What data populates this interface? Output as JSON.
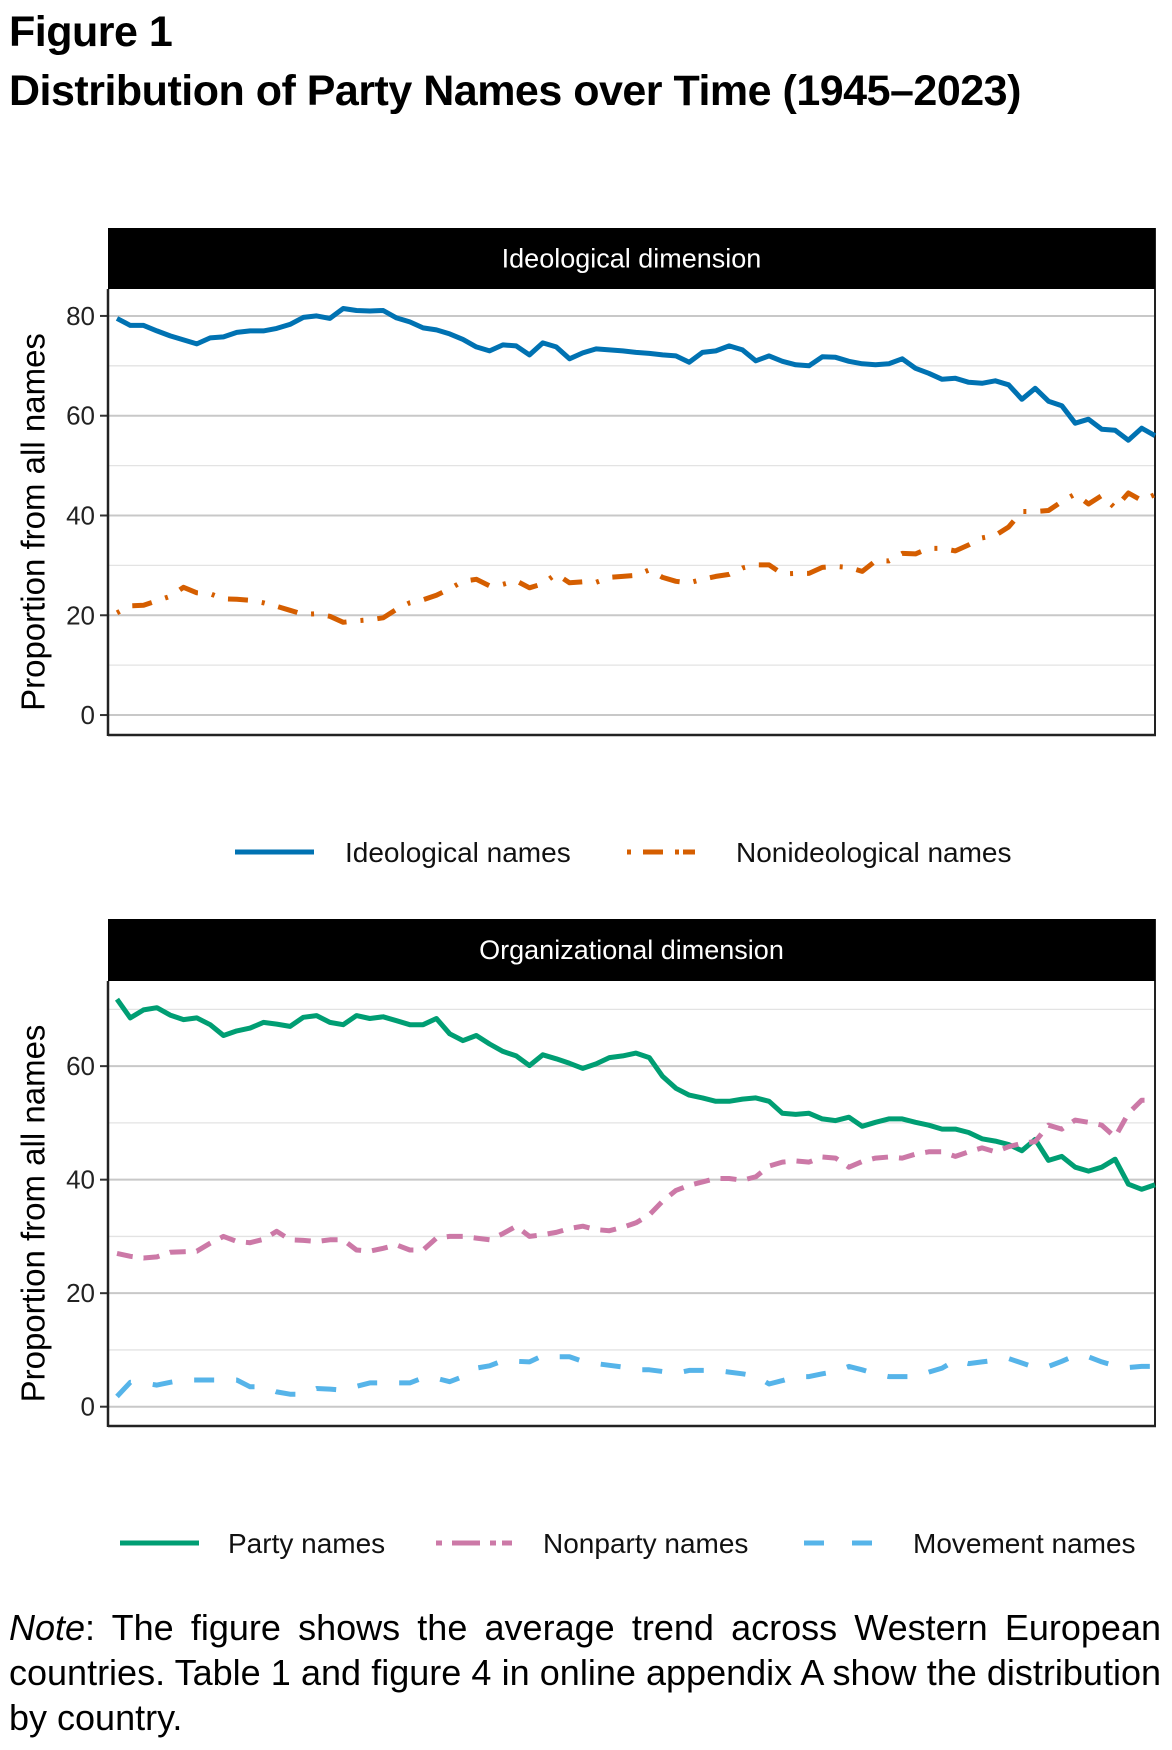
{
  "figure": {
    "label": "Figure 1",
    "title": "Distribution of Party Names over Time (1945–2023)",
    "note_label": "Note",
    "note_text": ": The figure shows the average trend across Western European countries. Table 1 and figure 4 in online appendix A show the distribution by country."
  },
  "chart_data": [
    {
      "type": "line",
      "title": "Ideological dimension",
      "xlabel": "",
      "ylabel": "Proportion from all names",
      "x_start": 1945,
      "x_end": 2023,
      "x_ticks_shown": false,
      "ylim": [
        -4,
        85.4
      ],
      "yticks": [
        0,
        20,
        40,
        60,
        80
      ],
      "minor_gridlines": [
        10,
        30,
        50,
        70
      ],
      "grid": true,
      "legend_position": "bottom",
      "series": [
        {
          "name": "Ideological names",
          "color": "#0072B2",
          "linetype": "solid",
          "values": [
            79.5,
            78.1,
            78.1,
            77,
            76,
            75.2,
            74.4,
            75.6,
            75.8,
            76.7,
            77,
            77,
            77.5,
            78.3,
            79.7,
            80,
            79.5,
            81.5,
            81.1,
            81,
            81.1,
            79.6,
            78.8,
            77.6,
            77.2,
            76.4,
            75.3,
            73.8,
            73,
            74.2,
            74,
            72.2,
            74.6,
            73.8,
            71.4,
            72.6,
            73.4,
            73.2,
            73,
            72.7,
            72.5,
            72.2,
            72,
            70.7,
            72.7,
            73,
            74,
            73.2,
            71,
            72,
            70.9,
            70.2,
            70,
            71.8,
            71.7,
            70.9,
            70.4,
            70.2,
            70.4,
            71.4,
            69.5,
            68.5,
            67.3,
            67.5,
            66.7,
            66.5,
            67,
            66.2,
            63.3,
            65.5,
            62.9,
            62,
            58.5,
            59.3,
            57.3,
            57.1,
            55.1,
            57.5,
            56
          ]
        },
        {
          "name": "Nonideological names",
          "color": "#D55E00",
          "linetype": "dotdash",
          "values": [
            20.5,
            21.9,
            22,
            22.9,
            23.8,
            25.6,
            24.5,
            24.3,
            23.3,
            23.2,
            23,
            22.5,
            21.8,
            21,
            20.2,
            20.3,
            19.8,
            18.6,
            18.9,
            19.1,
            19.5,
            21.2,
            22.5,
            23.1,
            24,
            25.3,
            26.8,
            27.2,
            25.9,
            26.2,
            26.9,
            25.5,
            26.3,
            28.3,
            26.5,
            26.7,
            26.6,
            27.6,
            27.8,
            28,
            29.1,
            27.6,
            26.8,
            26.5,
            27.2,
            27.8,
            28.2,
            29.5,
            30.1,
            30.1,
            28.3,
            28.4,
            28.4,
            29.6,
            29.8,
            29.6,
            28.8,
            30.9,
            30.9,
            32.4,
            32.3,
            33.4,
            33.4,
            32.9,
            34.1,
            35.5,
            36,
            37.7,
            40.8,
            40.8,
            41,
            42.8,
            44.3,
            42.3,
            44,
            41.5,
            44.5,
            43,
            44.2
          ]
        }
      ]
    },
    {
      "type": "line",
      "title": "Organizational dimension",
      "xlabel": "",
      "ylabel": "Proportion from all names",
      "x_start": 1945,
      "x_end": 2023,
      "x_ticks_shown": false,
      "ylim": [
        -3.4,
        75
      ],
      "yticks": [
        0,
        20,
        40,
        60
      ],
      "minor_gridlines": [
        10,
        30,
        50,
        70
      ],
      "grid": true,
      "legend_position": "bottom",
      "series": [
        {
          "name": "Party names",
          "color": "#009E73",
          "linetype": "solid",
          "values": [
            71.8,
            68.5,
            69.9,
            70.3,
            69,
            68.2,
            68.5,
            67.3,
            65.4,
            66.2,
            66.7,
            67.7,
            67.4,
            67,
            68.6,
            68.9,
            67.7,
            67.3,
            68.9,
            68.4,
            68.7,
            68,
            67.3,
            67.3,
            68.4,
            65.7,
            64.5,
            65.4,
            63.9,
            62.6,
            61.8,
            60.1,
            62,
            61.3,
            60.5,
            59.6,
            60.4,
            61.5,
            61.8,
            62.3,
            61.5,
            58.2,
            56.1,
            54.9,
            54.4,
            53.8,
            53.8,
            54.2,
            54.4,
            53.8,
            51.7,
            51.5,
            51.7,
            50.7,
            50.4,
            51,
            49.4,
            50.1,
            50.7,
            50.7,
            50.1,
            49.6,
            48.9,
            48.9,
            48.3,
            47.2,
            46.8,
            46.2,
            45.1,
            47.1,
            43.4,
            44.1,
            42.2,
            41.5,
            42.2,
            43.6,
            39.2,
            38.3,
            39.1
          ]
        },
        {
          "name": "Nonparty names",
          "color": "#CC79A7",
          "linetype": "dashed",
          "values": [
            27,
            26.5,
            26.2,
            26.4,
            27.2,
            27.3,
            27.4,
            28.8,
            30,
            29.1,
            28.9,
            29.5,
            30.9,
            29.4,
            29.3,
            29.1,
            29.4,
            29.4,
            27.6,
            27.4,
            27.9,
            28.5,
            27.6,
            27.6,
            29.7,
            30,
            30,
            29.7,
            29.4,
            30.5,
            31.8,
            30,
            30.3,
            30.7,
            31.4,
            31.8,
            31.2,
            31,
            31.6,
            32.4,
            33.8,
            36.2,
            38.1,
            39,
            39.6,
            40.2,
            40.2,
            39.9,
            40.5,
            42.4,
            43.1,
            43.3,
            43.1,
            44,
            43.8,
            42.2,
            43.2,
            43.8,
            44,
            43.8,
            44.5,
            44.9,
            44.9,
            44.1,
            44.9,
            45.6,
            44.9,
            45.8,
            46.4,
            46.7,
            49.6,
            48.9,
            50.5,
            50.1,
            49.6,
            47.5,
            51.7,
            54,
            54
          ]
        },
        {
          "name": "Movement names",
          "color": "#56B4E9",
          "linetype": "longdash",
          "values": [
            1.8,
            4.3,
            4.2,
            3.8,
            4.3,
            4.7,
            4.7,
            4.7,
            4.7,
            4.7,
            3.5,
            3.5,
            2.6,
            2.2,
            2.2,
            3.2,
            3.1,
            2.9,
            3.6,
            4.2,
            4.2,
            4.2,
            4.2,
            5.1,
            5,
            4.4,
            5.3,
            6.8,
            7.2,
            8.1,
            8,
            7.9,
            9,
            8.8,
            8.8,
            8,
            7.6,
            7.3,
            7,
            6.5,
            6.5,
            6.2,
            5.9,
            6.4,
            6.4,
            6.4,
            6.1,
            5.8,
            5.4,
            4,
            4.6,
            5.3,
            5.3,
            5.8,
            6.2,
            7.1,
            6.5,
            5.8,
            5.3,
            5.3,
            5.3,
            6.1,
            6.8,
            8.2,
            7.6,
            7.9,
            8.2,
            8.5,
            7.7,
            6.9,
            7.1,
            8,
            9,
            8.8,
            7.9,
            7.2,
            6.9,
            7.1,
            7.1
          ]
        }
      ]
    }
  ]
}
